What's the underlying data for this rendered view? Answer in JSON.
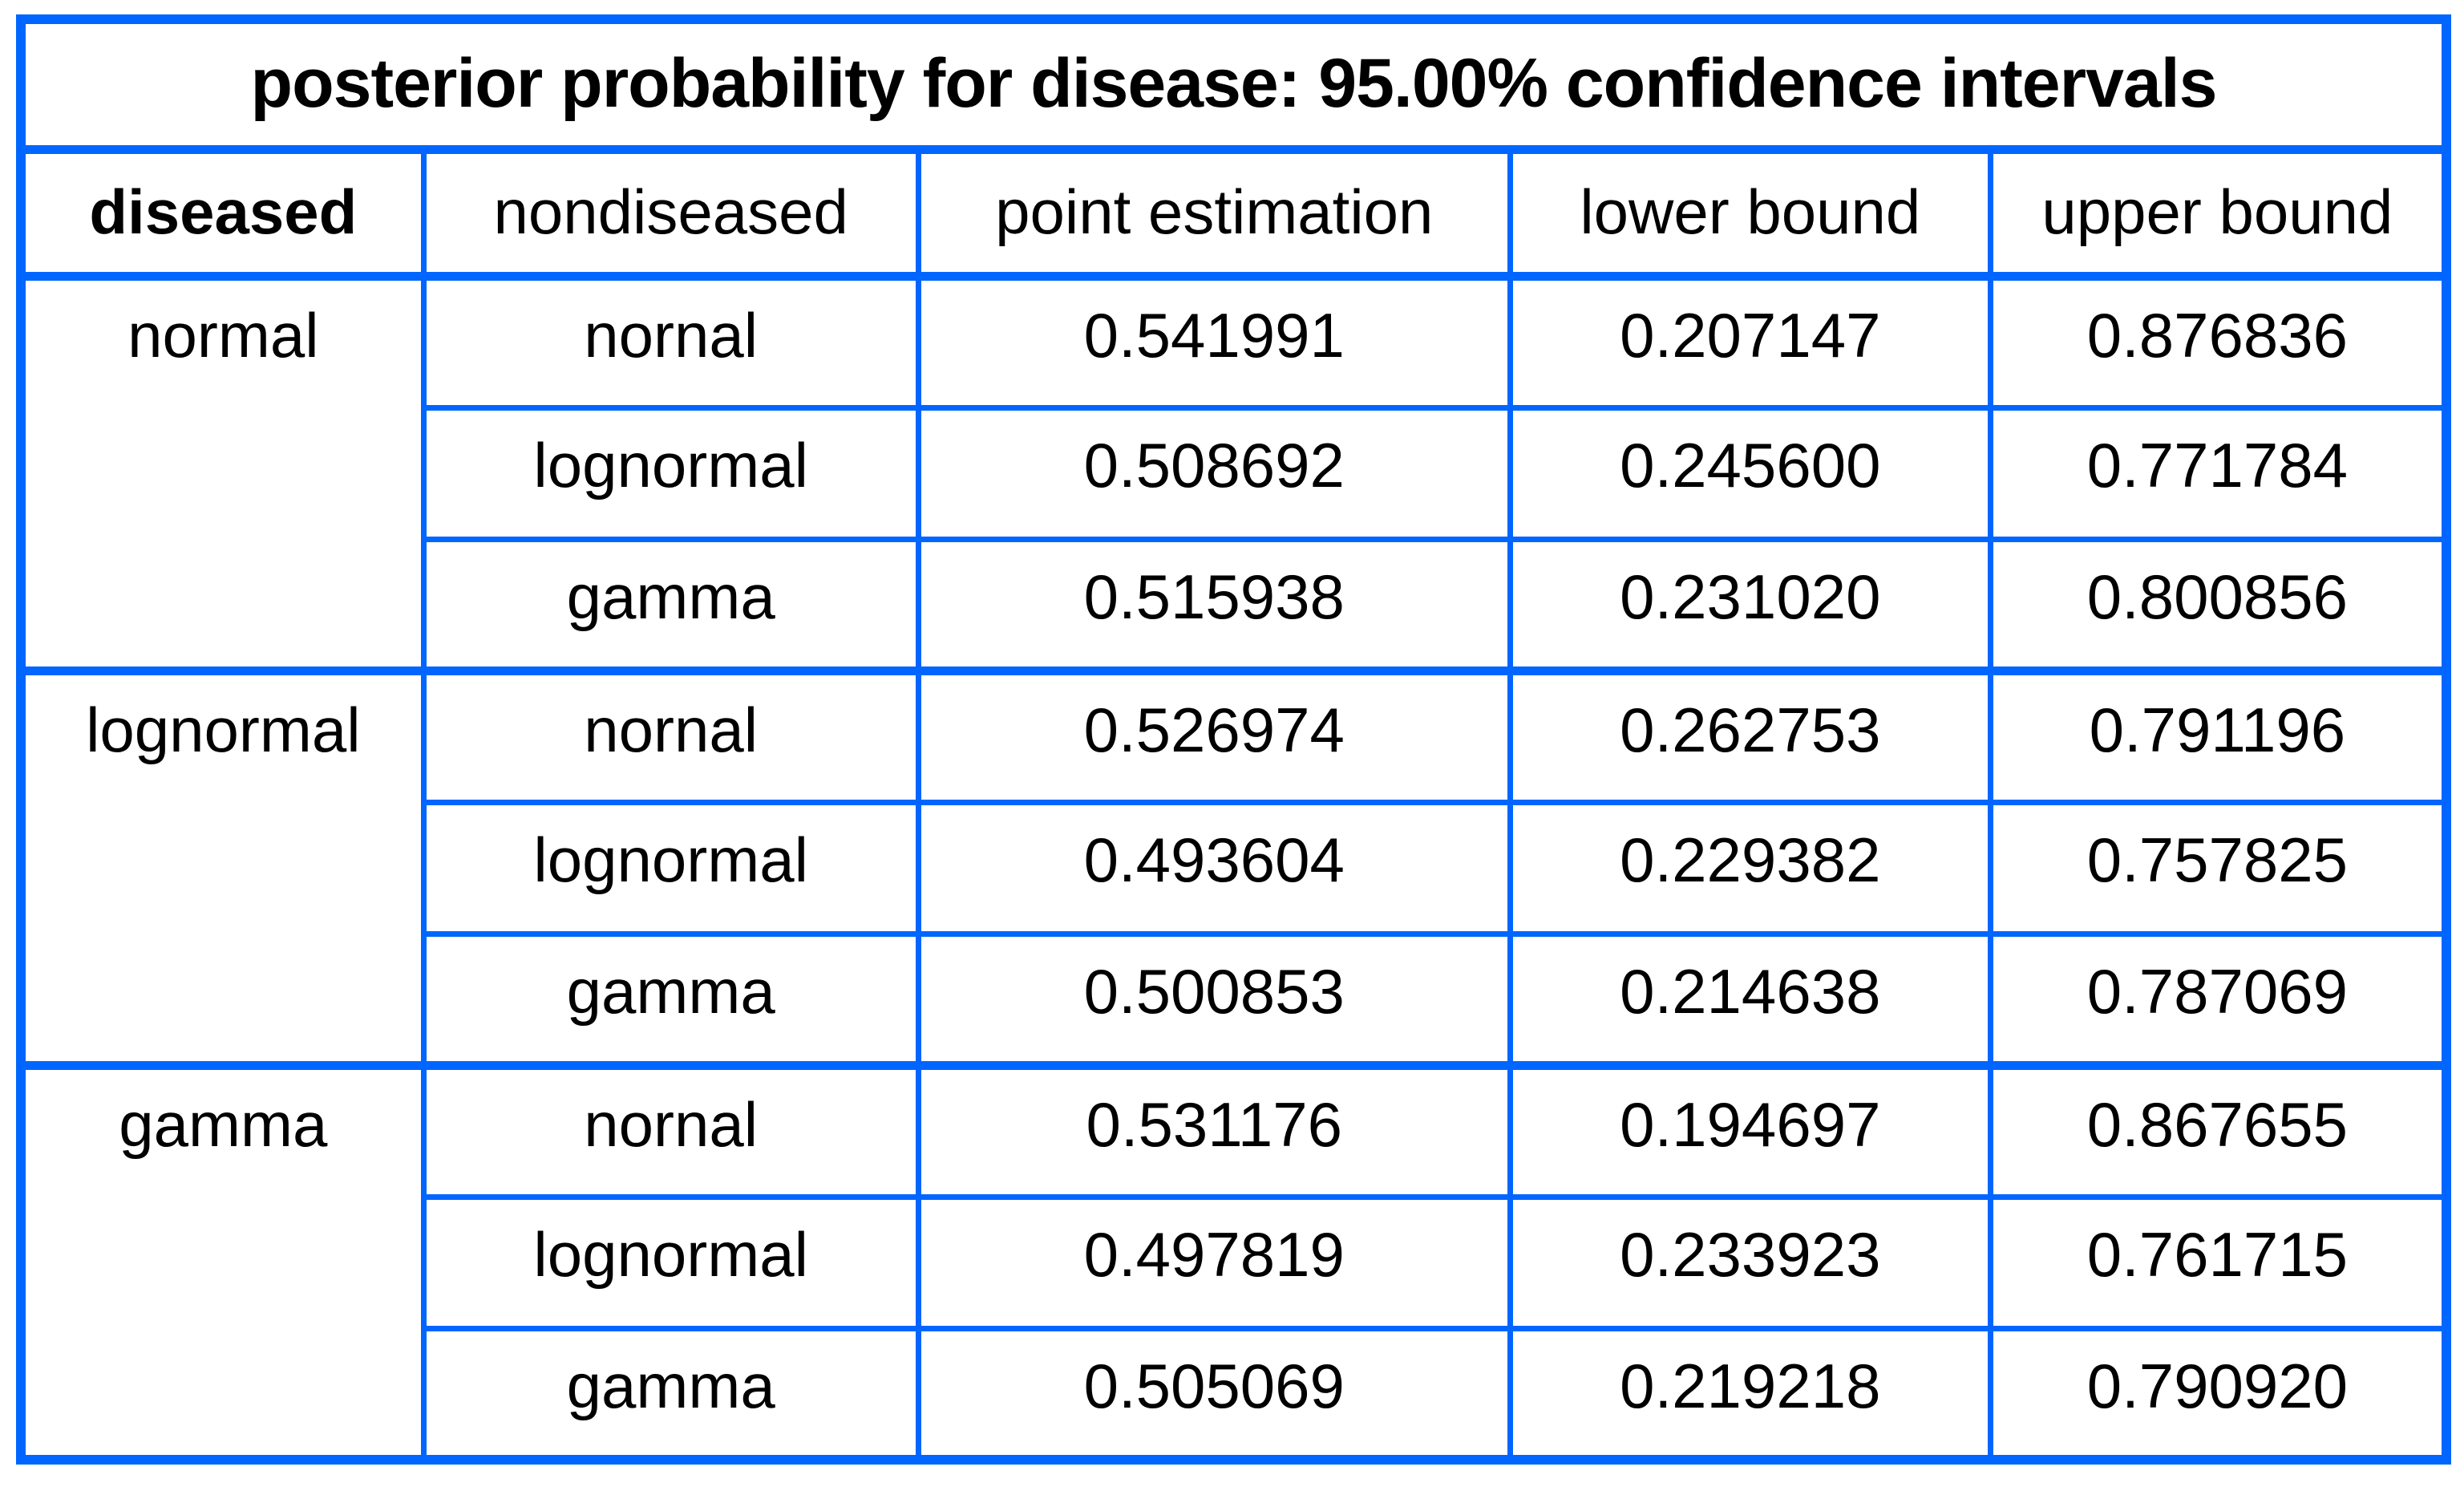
{
  "chart_data": {
    "type": "table",
    "title": "posterior probability for disease: 95.00% confidence intervals",
    "confidence_level_percent": 95.0,
    "columns": [
      "diseased",
      "nondiseased",
      "point estimation",
      "lower bound",
      "upper bound"
    ],
    "groups": [
      {
        "diseased": "normal",
        "rows": [
          {
            "nondiseased": "nornal",
            "point": "0.541991",
            "lower": "0.207147",
            "upper": "0.876836"
          },
          {
            "nondiseased": "lognormal",
            "point": "0.508692",
            "lower": "0.245600",
            "upper": "0.771784"
          },
          {
            "nondiseased": "gamma",
            "point": "0.515938",
            "lower": "0.231020",
            "upper": "0.800856"
          }
        ]
      },
      {
        "diseased": "lognormal",
        "rows": [
          {
            "nondiseased": "nornal",
            "point": "0.526974",
            "lower": "0.262753",
            "upper": "0.791196"
          },
          {
            "nondiseased": "lognormal",
            "point": "0.493604",
            "lower": "0.229382",
            "upper": "0.757825"
          },
          {
            "nondiseased": "gamma",
            "point": "0.500853",
            "lower": "0.214638",
            "upper": "0.787069"
          }
        ]
      },
      {
        "diseased": "gamma",
        "rows": [
          {
            "nondiseased": "nornal",
            "point": "0.531176",
            "lower": "0.194697",
            "upper": "0.867655"
          },
          {
            "nondiseased": "lognormal",
            "point": "0.497819",
            "lower": "0.233923",
            "upper": "0.761715"
          },
          {
            "nondiseased": "gamma",
            "point": "0.505069",
            "lower": "0.219218",
            "upper": "0.790920"
          }
        ]
      }
    ],
    "layout": {
      "grid": "on",
      "column_width_percents": [
        16.6,
        20.4,
        24.4,
        19.8,
        18.8
      ]
    }
  },
  "colors": {
    "border": "#0066FF",
    "text": "#000000",
    "background": "#FFFFFF"
  }
}
